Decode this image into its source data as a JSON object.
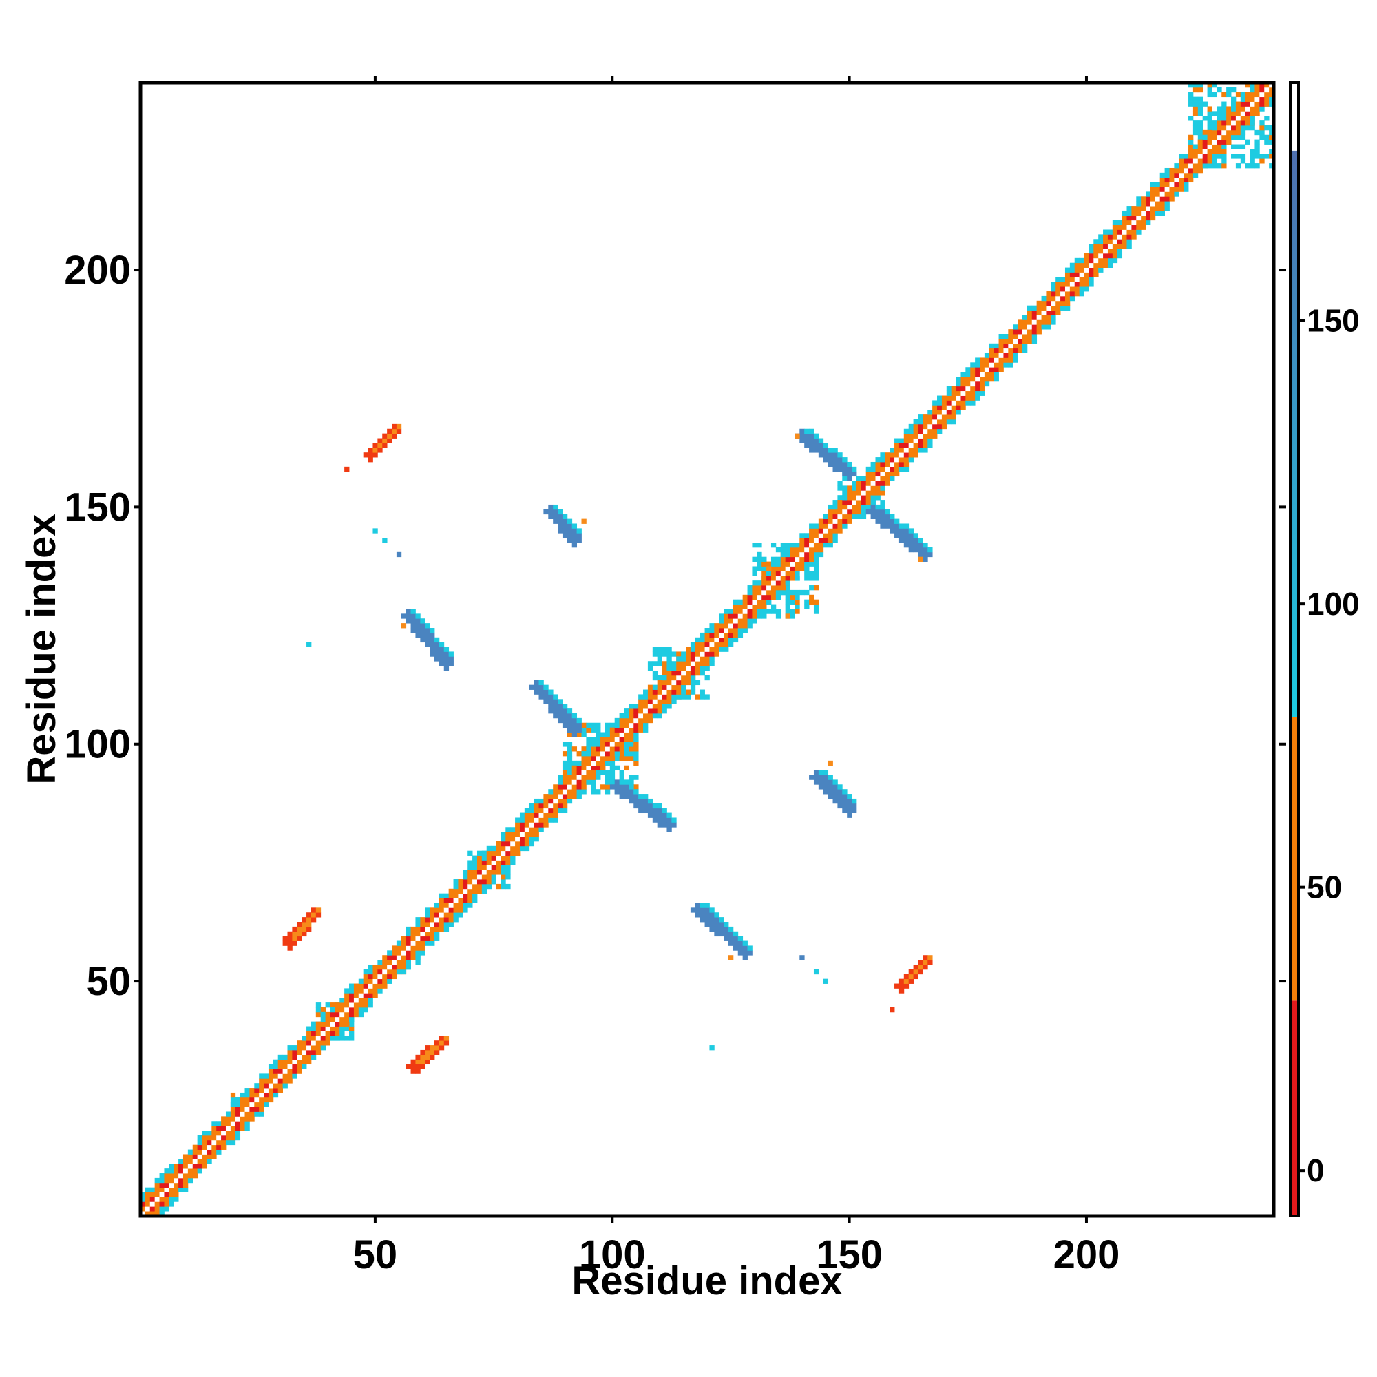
{
  "chart_data": {
    "type": "heatmap",
    "title": "",
    "xlabel": "Residue index",
    "ylabel": "Residue index",
    "xlim": [
      1,
      239
    ],
    "ylim": [
      1,
      239
    ],
    "x_ticks": [
      50,
      100,
      150,
      200
    ],
    "y_ticks": [
      50,
      100,
      150,
      200
    ],
    "grid": false,
    "legend": "none",
    "colorbar": {
      "position": "right",
      "range": [
        -8,
        192
      ],
      "ticks": [
        0,
        50,
        100,
        150
      ],
      "bands": [
        {
          "from": -8,
          "to": 30,
          "color": "#e31a1c"
        },
        {
          "from": 30,
          "to": 80,
          "color": "#f57f0a"
        },
        {
          "from": 80,
          "to": 180,
          "color": "#1ecbe1"
        },
        {
          "from": 180,
          "to": 192,
          "color": "#ffffff"
        }
      ],
      "gradient_top_color": "#4f6fae"
    },
    "colors": {
      "diag_red": "#e31a1c",
      "diag_orange": "#f57f0a",
      "diag_cyan": "#1ecbe1",
      "strand_blue": "#4a84c0",
      "strand_red": "#f03a12",
      "strand_orange": "#f78b1a"
    },
    "features": [
      {
        "kind": "diagonal",
        "from": 1,
        "to": 239,
        "width": 4
      },
      {
        "kind": "blob",
        "x": [
          20,
          24
        ],
        "y": [
          22,
          26
        ],
        "color": "cyan"
      },
      {
        "kind": "blob",
        "x": [
          38,
          45
        ],
        "y": [
          38,
          45
        ],
        "color": "cyan"
      },
      {
        "kind": "blob",
        "x": [
          53,
          59
        ],
        "y": [
          52,
          57
        ],
        "color": "cyan"
      },
      {
        "kind": "blob",
        "x": [
          70,
          78
        ],
        "y": [
          70,
          77
        ],
        "color": "cyan"
      },
      {
        "kind": "blob",
        "x": [
          90,
          105
        ],
        "y": [
          90,
          104
        ],
        "color": "cyan"
      },
      {
        "kind": "blob",
        "x": [
          108,
          120
        ],
        "y": [
          110,
          120
        ],
        "color": "cyan"
      },
      {
        "kind": "blob",
        "x": [
          130,
          143
        ],
        "y": [
          127,
          142
        ],
        "color": "cyan"
      },
      {
        "kind": "blob",
        "x": [
          148,
          157
        ],
        "y": [
          148,
          157
        ],
        "color": "cyan"
      },
      {
        "kind": "blob",
        "x": [
          222,
          239
        ],
        "y": [
          222,
          239
        ],
        "color": "cyan"
      },
      {
        "kind": "strand",
        "x0": 57,
        "y0": 127,
        "x1": 65,
        "y1": 117,
        "color": "blue"
      },
      {
        "kind": "strand",
        "x0": 87,
        "y0": 149,
        "x1": 92,
        "y1": 143,
        "color": "blue"
      },
      {
        "kind": "strand",
        "x0": 140,
        "y0": 165,
        "x1": 150,
        "y1": 157,
        "color": "blue"
      },
      {
        "kind": "strand",
        "x0": 155,
        "y0": 149,
        "x1": 166,
        "y1": 140,
        "color": "blue"
      },
      {
        "kind": "strand",
        "x0": 84,
        "y0": 112,
        "x1": 92,
        "y1": 103,
        "color": "blue"
      },
      {
        "kind": "strand",
        "x0": 101,
        "y0": 91,
        "x1": 112,
        "y1": 83,
        "color": "blue"
      },
      {
        "kind": "strand",
        "x0": 118,
        "y0": 65,
        "x1": 128,
        "y1": 56,
        "color": "blue"
      },
      {
        "kind": "strand",
        "x0": 143,
        "y0": 93,
        "x1": 150,
        "y1": 86,
        "color": "blue"
      },
      {
        "kind": "strand",
        "x0": 49,
        "y0": 161,
        "x1": 54,
        "y1": 166,
        "color": "red"
      },
      {
        "kind": "strand",
        "x0": 32,
        "y0": 58,
        "x1": 37,
        "y1": 64,
        "color": "red"
      },
      {
        "kind": "strand",
        "x0": 58,
        "y0": 32,
        "x1": 64,
        "y1": 37,
        "color": "red"
      },
      {
        "kind": "strand",
        "x0": 161,
        "y0": 49,
        "x1": 166,
        "y1": 54,
        "color": "red"
      },
      {
        "kind": "dot",
        "x": 44,
        "y": 158,
        "color": "red"
      },
      {
        "kind": "dot",
        "x": 159,
        "y": 44,
        "color": "red"
      },
      {
        "kind": "dot",
        "x": 50,
        "y": 145,
        "color": "cyan"
      },
      {
        "kind": "dot",
        "x": 52,
        "y": 143,
        "color": "cyan"
      },
      {
        "kind": "dot",
        "x": 55,
        "y": 140,
        "color": "blue"
      },
      {
        "kind": "dot",
        "x": 36,
        "y": 121,
        "color": "cyan"
      },
      {
        "kind": "dot",
        "x": 121,
        "y": 36,
        "color": "cyan"
      },
      {
        "kind": "dot",
        "x": 140,
        "y": 55,
        "color": "blue"
      },
      {
        "kind": "dot",
        "x": 143,
        "y": 52,
        "color": "cyan"
      },
      {
        "kind": "dot",
        "x": 145,
        "y": 50,
        "color": "cyan"
      },
      {
        "kind": "dot",
        "x": 94,
        "y": 147,
        "color": "orange"
      },
      {
        "kind": "dot",
        "x": 146,
        "y": 96,
        "color": "orange"
      },
      {
        "kind": "dot",
        "x": 125,
        "y": 55,
        "color": "orange"
      },
      {
        "kind": "dot",
        "x": 56,
        "y": 125,
        "color": "orange"
      },
      {
        "kind": "dot",
        "x": 139,
        "y": 165,
        "color": "orange"
      },
      {
        "kind": "dot",
        "x": 165,
        "y": 139,
        "color": "orange"
      },
      {
        "kind": "dot",
        "x": 133,
        "y": 137,
        "color": "orange"
      },
      {
        "kind": "dot",
        "x": 137,
        "y": 127,
        "color": "orange"
      }
    ]
  }
}
